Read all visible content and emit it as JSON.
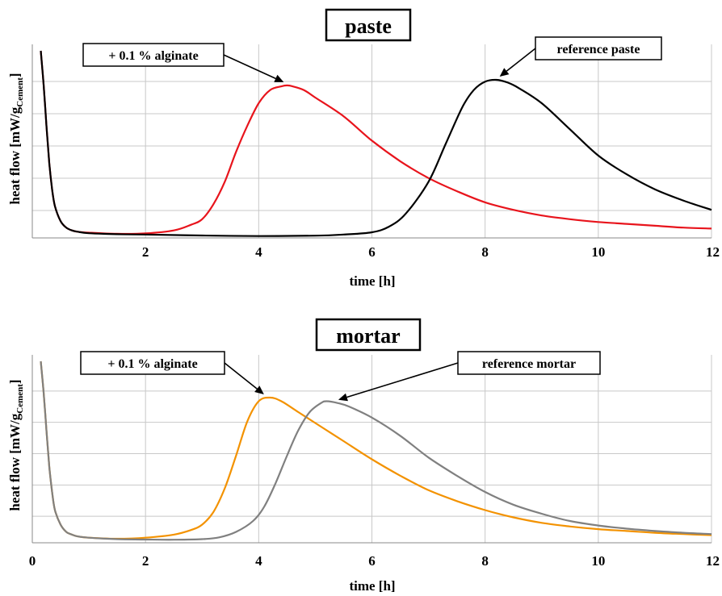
{
  "chart_data": [
    {
      "type": "line",
      "title": "paste",
      "xlabel": "time [h]",
      "ylabel": "heat flow [mW/g",
      "ylabel_sub": "Cement",
      "ylabel_end": "]",
      "xlim": [
        0,
        12
      ],
      "ylim": [
        0,
        1
      ],
      "x_ticks": [
        "2",
        "4",
        "6",
        "8",
        "10",
        "12"
      ],
      "y_ticks_labeled": false,
      "grid": true,
      "series": [
        {
          "name": "+ 0.1 % alginate",
          "color": "#e8141c",
          "x": [
            0.15,
            0.2,
            0.25,
            0.3,
            0.35,
            0.4,
            0.5,
            0.6,
            0.7,
            0.8,
            1.0,
            1.5,
            2.0,
            2.5,
            2.8,
            3.0,
            3.2,
            3.4,
            3.6,
            3.8,
            4.0,
            4.2,
            4.4,
            4.5,
            4.6,
            4.8,
            5.0,
            5.5,
            6.0,
            6.5,
            7.0,
            7.5,
            8.0,
            8.5,
            9.0,
            9.5,
            10.0,
            10.5,
            11.0,
            11.5,
            12.0
          ],
          "y": [
            1.0,
            0.82,
            0.6,
            0.4,
            0.26,
            0.17,
            0.09,
            0.055,
            0.04,
            0.033,
            0.028,
            0.022,
            0.024,
            0.04,
            0.07,
            0.1,
            0.18,
            0.3,
            0.46,
            0.6,
            0.72,
            0.79,
            0.81,
            0.815,
            0.81,
            0.79,
            0.75,
            0.65,
            0.52,
            0.41,
            0.32,
            0.25,
            0.19,
            0.15,
            0.12,
            0.1,
            0.085,
            0.075,
            0.065,
            0.055,
            0.05
          ]
        },
        {
          "name": "reference paste",
          "color": "#000000",
          "x": [
            0.15,
            0.2,
            0.25,
            0.3,
            0.35,
            0.4,
            0.5,
            0.6,
            0.7,
            0.8,
            1.0,
            1.5,
            2.0,
            3.0,
            4.0,
            5.0,
            5.5,
            6.0,
            6.3,
            6.6,
            7.0,
            7.3,
            7.6,
            7.8,
            8.0,
            8.2,
            8.4,
            8.6,
            9.0,
            9.5,
            10.0,
            10.5,
            11.0,
            11.5,
            12.0
          ],
          "y": [
            1.0,
            0.82,
            0.6,
            0.4,
            0.26,
            0.17,
            0.09,
            0.055,
            0.04,
            0.033,
            0.025,
            0.02,
            0.018,
            0.013,
            0.01,
            0.012,
            0.018,
            0.03,
            0.06,
            0.13,
            0.3,
            0.5,
            0.7,
            0.79,
            0.835,
            0.845,
            0.83,
            0.8,
            0.72,
            0.58,
            0.44,
            0.34,
            0.26,
            0.2,
            0.15
          ]
        }
      ],
      "annotations": [
        {
          "text": "+ 0.1 % alginate",
          "points_to": [
            4.5,
            0.815
          ]
        },
        {
          "text": "reference paste",
          "points_to": [
            8.2,
            0.845
          ]
        }
      ]
    },
    {
      "type": "line",
      "title": "mortar",
      "xlabel": "time [h]",
      "ylabel": "heat flow [mW/g",
      "ylabel_sub": "Cement",
      "ylabel_end": "]",
      "xlim": [
        0,
        12
      ],
      "ylim": [
        0,
        1
      ],
      "x_ticks": [
        "0",
        "2",
        "4",
        "6",
        "8",
        "10",
        "12"
      ],
      "y_ticks_labeled": false,
      "grid": true,
      "series": [
        {
          "name": "+ 0.1 % alginate",
          "color": "#f39200",
          "x": [
            0.15,
            0.2,
            0.25,
            0.3,
            0.35,
            0.4,
            0.5,
            0.6,
            0.7,
            0.8,
            1.0,
            1.5,
            2.0,
            2.5,
            2.8,
            3.0,
            3.2,
            3.4,
            3.6,
            3.8,
            4.0,
            4.2,
            4.4,
            4.7,
            5.0,
            5.5,
            6.0,
            6.5,
            7.0,
            7.5,
            8.0,
            8.5,
            9.0,
            9.5,
            10.0,
            10.5,
            11.0,
            11.5,
            12.0
          ],
          "y": [
            1.0,
            0.83,
            0.62,
            0.42,
            0.28,
            0.18,
            0.1,
            0.06,
            0.045,
            0.035,
            0.028,
            0.022,
            0.028,
            0.045,
            0.07,
            0.1,
            0.17,
            0.3,
            0.48,
            0.67,
            0.78,
            0.8,
            0.78,
            0.72,
            0.66,
            0.56,
            0.46,
            0.37,
            0.29,
            0.23,
            0.18,
            0.14,
            0.11,
            0.09,
            0.075,
            0.065,
            0.055,
            0.048,
            0.042
          ]
        },
        {
          "name": "reference mortar",
          "color": "#808080",
          "x": [
            0.15,
            0.2,
            0.25,
            0.3,
            0.35,
            0.4,
            0.5,
            0.6,
            0.7,
            0.8,
            1.0,
            1.5,
            2.0,
            2.5,
            3.0,
            3.3,
            3.6,
            3.9,
            4.1,
            4.3,
            4.5,
            4.7,
            4.9,
            5.1,
            5.2,
            5.4,
            5.6,
            6.0,
            6.5,
            7.0,
            7.5,
            8.0,
            8.5,
            9.0,
            9.5,
            10.0,
            10.5,
            11.0,
            11.5,
            12.0
          ],
          "y": [
            1.0,
            0.83,
            0.62,
            0.42,
            0.28,
            0.18,
            0.1,
            0.06,
            0.045,
            0.035,
            0.028,
            0.02,
            0.018,
            0.017,
            0.02,
            0.03,
            0.06,
            0.12,
            0.2,
            0.33,
            0.48,
            0.62,
            0.72,
            0.77,
            0.78,
            0.77,
            0.75,
            0.69,
            0.59,
            0.47,
            0.37,
            0.28,
            0.21,
            0.16,
            0.12,
            0.095,
            0.078,
            0.065,
            0.055,
            0.048
          ]
        }
      ],
      "annotations": [
        {
          "text": "+ 0.1 % alginate",
          "points_to": [
            4.15,
            0.8
          ]
        },
        {
          "text": "reference mortar",
          "points_to": [
            5.35,
            0.77
          ]
        }
      ]
    }
  ]
}
